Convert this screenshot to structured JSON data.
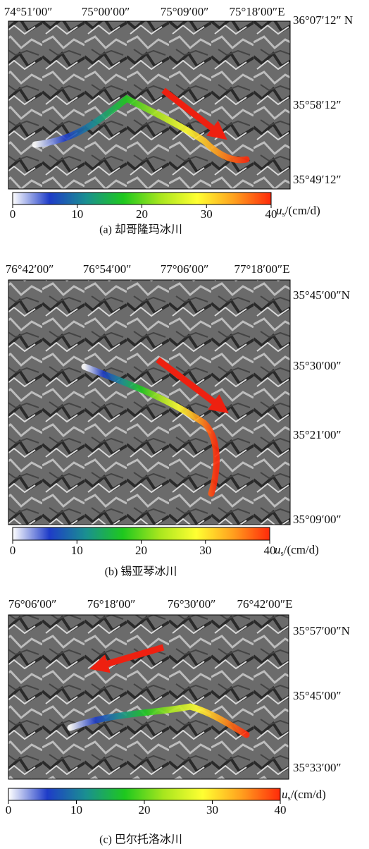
{
  "colorbar": {
    "lim": [
      0,
      40
    ],
    "ticks": [
      0,
      10,
      20,
      30,
      40
    ],
    "colors": [
      "#ffffff",
      "#1e3cc8",
      "#1a9090",
      "#1ec81e",
      "#a8e61e",
      "#ffff32",
      "#ffa01e",
      "#ff2a0a"
    ],
    "unit_symbol": "u",
    "unit_subscript": "s",
    "unit_text": "/(cm/d)"
  },
  "panels": [
    {
      "top_labels": [
        "74°51′00″",
        "75°00′00″",
        "75°09′00″",
        "75°18′00″E"
      ],
      "right_labels": [
        "36°07′12″ N",
        "35°58′12″",
        "35°49′12″"
      ],
      "caption": "(a)  却哥隆玛冰川"
    },
    {
      "top_labels": [
        "76°42′00″",
        "76°54′00″",
        "77°06′00″",
        "77°18′00″E"
      ],
      "right_labels": [
        "35°45′00″N",
        "35°30′00″",
        "35°21′00″",
        "35°09′00″"
      ],
      "caption": "(b)  锡亚琴冰川"
    },
    {
      "top_labels": [
        "76°06′00″",
        "76°18′00″",
        "76°30′00″",
        "76°42′00″E"
      ],
      "right_labels": [
        "35°57′00″N",
        "35°45′00″",
        "35°33′00″"
      ],
      "caption": "(c)  巴尔托洛冰川"
    }
  ]
}
